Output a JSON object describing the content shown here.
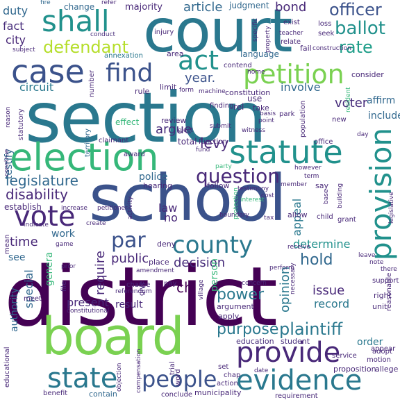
{
  "words": {
    "court": "court",
    "section": "section",
    "school": "school",
    "district": "district",
    "board": "board",
    "election": "election",
    "statute": "statute",
    "petition": "petition",
    "provision": "provision",
    "case": "case",
    "find": "find",
    "act": "act",
    "shall": "shall",
    "defendant": "defendant",
    "ballot": "ballot",
    "officer": "officer",
    "rate": "rate",
    "vote": "vote",
    "question": "question",
    "county": "county",
    "provide": "provide",
    "evidence": "evidence",
    "people": "people",
    "state": "state",
    "par": "par",
    "legislature": "legislature",
    "levy": "levy",
    "argue": "argue",
    "year": "year.",
    "testify": "testify",
    "disability": "disability",
    "purpose": "purpose",
    "plaintiff": "plaintiff",
    "power": "power",
    "hold": "hold",
    "determine": "determine",
    "issue": "issue",
    "record": "record",
    "opinion": "opinion",
    "appeal": "appeal",
    "voter": "voter",
    "involve": "involve",
    "article": "article",
    "bond": "bond",
    "duty": "duty",
    "fact": "fact",
    "city": "city",
    "circuit": "circuit",
    "public": "public",
    "decision": "decision",
    "require": "require",
    "time": "time",
    "work": "work",
    "see": "see",
    "law": "law",
    "no": "no",
    "police": "police",
    "present": "present",
    "result": "result",
    "ch": "ch",
    "special": "special",
    "authority": "authority",
    "general": "genera",
    "person": "person",
    "order": "order",
    "education": "education",
    "student": "student",
    "municipality": "municipality",
    "contain": "contain",
    "service": "service",
    "appear": "appear",
    "right": "right",
    "unit": "unit",
    "support": "support",
    "mean": "mean",
    "affirm": "affirm",
    "include": "include",
    "consider": "consider",
    "language": "language",
    "majority": "majority",
    "judgment": "judgment",
    "change": "change",
    "fire": "fire",
    "refer": "refer",
    "exist": "exist",
    "loss": "loss",
    "specific": "specific",
    "conduct": "conduct",
    "injury": "injury",
    "subject": "subject",
    "annexation": "annexation",
    "area": "area",
    "contend": "contend",
    "home": "home",
    "relate": "relate",
    "fail": "fail",
    "seek": "seek",
    "teacher": "teacher",
    "construction": "construction",
    "property": "property",
    "number": "number",
    "rule": "rule",
    "limit": "limit",
    "form": "form",
    "machine": "machine",
    "constitution": "constitution",
    "finding": "finding",
    "rel": "rel",
    "use": "use",
    "take": "take",
    "basis": "basis",
    "point": "point",
    "park": "park",
    "new": "new",
    "population": "population",
    "resident": "resident",
    "day": "day",
    "effect": "effect",
    "review": "review",
    "elect": "elect",
    "total": "total",
    "function": "function",
    "fund": "fund",
    "submit": "submit",
    "witness": "witness",
    "office": "office",
    "claimant": "claimant",
    "award": "award",
    "party": "party",
    "reason": "reason",
    "statutory": "statutory",
    "territory": "territory",
    "hearing": "hearing",
    "follow": "follow",
    "testimony": "testimony",
    "member": "member",
    "say": "say",
    "cost": "cost",
    "interest": "interest",
    "however": "however",
    "term": "term",
    "establish": "establish",
    "increase": "increase",
    "indicate": "indicate",
    "create": "create",
    "activity": "activity",
    "boundary": "boundary",
    "protection": "protection",
    "tax": "tax",
    "allow": "allow",
    "child": "child",
    "base": "base",
    "grant": "grant",
    "building": "building",
    "legislative": "legislative",
    "game": "game",
    "prior": "prior",
    "deny": "deny",
    "place": "place",
    "amendment": "amendment",
    "charge": "charge",
    "pay": "pay",
    "give": "give",
    "village": "village",
    "referendum": "referendum",
    "file": "file",
    "constitutional": "constitutional",
    "argument": "argument",
    "apply": "apply",
    "concern": "concern",
    "perform": "perform",
    "receive": "receive",
    "necessary": "necessary",
    "leave": "leave",
    "note": "note",
    "reasonable": "reasonable",
    "proposition": "proposition",
    "allege": "allege",
    "motion": "motion",
    "adopt": "adopt",
    "educational": "educational",
    "benefit": "benefit",
    "trial": "trial",
    "word": "word",
    "objection": "objection",
    "compensation": "compensation",
    "conclude": "conclude",
    "requirement": "requirement",
    "action": "action",
    "chap": "chap",
    "set": "set",
    "date": "date",
    "there": "there",
    "meet": "meet",
    "construe": "construe",
    "petitioner": "petitioner"
  }
}
